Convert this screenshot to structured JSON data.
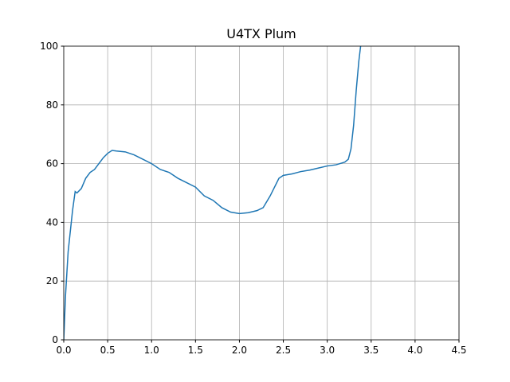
{
  "chart_data": {
    "type": "line",
    "title": "U4TX Plum",
    "x": [
      0,
      0.02,
      0.05,
      0.1,
      0.13,
      0.15,
      0.2,
      0.25,
      0.3,
      0.35,
      0.4,
      0.45,
      0.5,
      0.55,
      0.6,
      0.7,
      0.8,
      0.9,
      1.0,
      1.1,
      1.2,
      1.3,
      1.4,
      1.5,
      1.6,
      1.7,
      1.8,
      1.9,
      2.0,
      2.1,
      2.2,
      2.27,
      2.35,
      2.45,
      2.5,
      2.6,
      2.7,
      2.8,
      2.9,
      3.0,
      3.1,
      3.2,
      3.24,
      3.27,
      3.3,
      3.33,
      3.36,
      3.38
    ],
    "series": [
      {
        "name": "U4TX Plum",
        "color": "#1f77b4",
        "values": [
          0,
          15,
          30,
          44,
          50.5,
          50,
          51.5,
          55,
          57,
          58,
          60,
          62,
          63.5,
          64.5,
          64.3,
          64,
          63,
          61.5,
          60,
          58,
          57,
          55,
          53.5,
          52,
          49,
          47.5,
          45,
          43.5,
          43,
          43.3,
          44,
          45,
          49,
          55,
          56,
          56.5,
          57.3,
          57.8,
          58.5,
          59.2,
          59.6,
          60.5,
          61.5,
          65,
          73,
          85,
          95,
          100
        ]
      }
    ],
    "xlim": [
      0,
      4.5
    ],
    "ylim": [
      0,
      100
    ],
    "xticks": [
      {
        "value": 0,
        "label": "0.0"
      },
      {
        "value": 0.5,
        "label": "0.5"
      },
      {
        "value": 1,
        "label": "1.0"
      },
      {
        "value": 1.5,
        "label": "1.5"
      },
      {
        "value": 2,
        "label": "2.0"
      },
      {
        "value": 2.5,
        "label": "2.5"
      },
      {
        "value": 3,
        "label": "3.0"
      },
      {
        "value": 3.5,
        "label": "3.5"
      },
      {
        "value": 4,
        "label": "4.0"
      },
      {
        "value": 4.5,
        "label": "4.5"
      }
    ],
    "yticks": [
      0,
      20,
      40,
      60,
      80,
      100
    ],
    "grid": true
  }
}
